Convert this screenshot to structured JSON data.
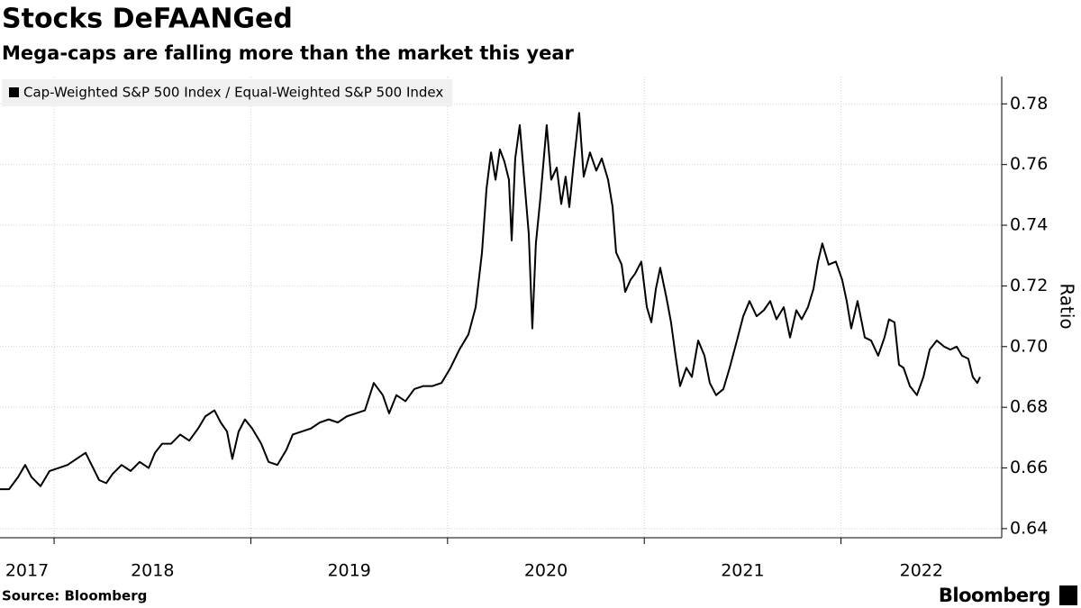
{
  "chart_data": {
    "type": "line",
    "title": "Stocks DeFAANGed",
    "subtitle": "Mega-caps are falling more than the market this year",
    "y_label": "Ratio",
    "source": "Source: Bloomberg",
    "brand": "Bloomberg",
    "legend": "top-left",
    "grid": true,
    "xlim": [
      2017.725,
      2022.817
    ],
    "ylim": [
      0.637,
      0.789
    ],
    "xticks": [
      {
        "value": 2017,
        "label": "2017"
      },
      {
        "value": 2018,
        "label": "2018"
      },
      {
        "value": 2019,
        "label": "2019"
      },
      {
        "value": 2020,
        "label": "2020"
      },
      {
        "value": 2021,
        "label": "2021"
      },
      {
        "value": 2022,
        "label": "2022"
      }
    ],
    "yticks": [
      0.64,
      0.66,
      0.68,
      {
        "value": 0.7,
        "label": "0.70"
      },
      0.72,
      0.74,
      0.76,
      0.78
    ],
    "x": [
      2017.725,
      2017.771,
      2017.817,
      2017.853,
      2017.885,
      2017.931,
      2017.977,
      2018.023,
      2018.068,
      2018.114,
      2018.16,
      2018.183,
      2018.229,
      2018.265,
      2018.297,
      2018.343,
      2018.389,
      2018.435,
      2018.481,
      2018.513,
      2018.549,
      2018.595,
      2018.641,
      2018.687,
      2018.732,
      2018.769,
      2018.815,
      2018.847,
      2018.879,
      2018.906,
      2018.938,
      2018.97,
      2019.007,
      2019.053,
      2019.09,
      2019.135,
      2019.181,
      2019.213,
      2019.259,
      2019.305,
      2019.351,
      2019.396,
      2019.442,
      2019.488,
      2019.534,
      2019.58,
      2019.625,
      2019.671,
      2019.703,
      2019.74,
      2019.786,
      2019.831,
      2019.877,
      2019.923,
      2019.969,
      2020.015,
      2020.06,
      2020.106,
      2020.143,
      2020.175,
      2020.198,
      2020.221,
      2020.244,
      2020.266,
      2020.289,
      2020.312,
      2020.326,
      2020.344,
      2020.367,
      2020.39,
      2020.413,
      2020.431,
      2020.449,
      2020.472,
      2020.504,
      2020.527,
      2020.555,
      2020.578,
      2020.6,
      2020.619,
      2020.642,
      2020.669,
      2020.692,
      2020.724,
      2020.756,
      2020.784,
      2020.816,
      2020.839,
      2020.857,
      2020.885,
      2020.903,
      2020.93,
      2020.953,
      2020.985,
      2021.013,
      2021.036,
      2021.059,
      2021.081,
      2021.113,
      2021.136,
      2021.159,
      2021.182,
      2021.214,
      2021.242,
      2021.274,
      2021.306,
      2021.333,
      2021.365,
      2021.402,
      2021.434,
      2021.471,
      2021.503,
      2021.535,
      2021.571,
      2021.608,
      2021.64,
      2021.672,
      2021.709,
      2021.741,
      2021.773,
      2021.8,
      2021.832,
      2021.86,
      2021.883,
      2021.905,
      2021.937,
      2021.974,
      2022.006,
      2022.029,
      2022.052,
      2022.084,
      2022.121,
      2022.153,
      2022.189,
      2022.221,
      2022.244,
      2022.272,
      2022.295,
      2022.318,
      2022.35,
      2022.386,
      2022.419,
      2022.451,
      2022.487,
      2022.524,
      2022.556,
      2022.588,
      2022.615,
      2022.647,
      2022.67,
      2022.693,
      2022.707
    ],
    "series": [
      {
        "name": "Cap-Weighted S&P 500 Index / Equal-Weighted S&P 500 Index",
        "color": "#000000",
        "values": [
          0.653,
          0.653,
          0.657,
          0.661,
          0.657,
          0.654,
          0.659,
          0.66,
          0.661,
          0.663,
          0.665,
          0.662,
          0.656,
          0.655,
          0.658,
          0.661,
          0.659,
          0.662,
          0.66,
          0.665,
          0.668,
          0.668,
          0.671,
          0.669,
          0.673,
          0.677,
          0.679,
          0.675,
          0.672,
          0.663,
          0.672,
          0.676,
          0.673,
          0.668,
          0.662,
          0.661,
          0.666,
          0.671,
          0.672,
          0.673,
          0.675,
          0.676,
          0.675,
          0.677,
          0.678,
          0.679,
          0.688,
          0.684,
          0.678,
          0.684,
          0.682,
          0.686,
          0.687,
          0.687,
          0.688,
          0.693,
          0.699,
          0.704,
          0.713,
          0.731,
          0.752,
          0.764,
          0.755,
          0.765,
          0.761,
          0.755,
          0.735,
          0.762,
          0.773,
          0.755,
          0.737,
          0.706,
          0.734,
          0.749,
          0.773,
          0.755,
          0.759,
          0.747,
          0.756,
          0.746,
          0.761,
          0.777,
          0.756,
          0.764,
          0.758,
          0.762,
          0.755,
          0.746,
          0.731,
          0.727,
          0.718,
          0.722,
          0.724,
          0.728,
          0.713,
          0.708,
          0.719,
          0.726,
          0.716,
          0.708,
          0.697,
          0.687,
          0.693,
          0.69,
          0.702,
          0.697,
          0.688,
          0.684,
          0.686,
          0.693,
          0.702,
          0.71,
          0.715,
          0.71,
          0.712,
          0.715,
          0.709,
          0.713,
          0.703,
          0.712,
          0.709,
          0.713,
          0.719,
          0.728,
          0.734,
          0.727,
          0.728,
          0.722,
          0.715,
          0.706,
          0.715,
          0.703,
          0.702,
          0.697,
          0.703,
          0.709,
          0.708,
          0.694,
          0.693,
          0.687,
          0.684,
          0.69,
          0.699,
          0.702,
          0.7,
          0.699,
          0.7,
          0.697,
          0.696,
          0.69,
          0.688,
          0.69
        ]
      }
    ]
  }
}
